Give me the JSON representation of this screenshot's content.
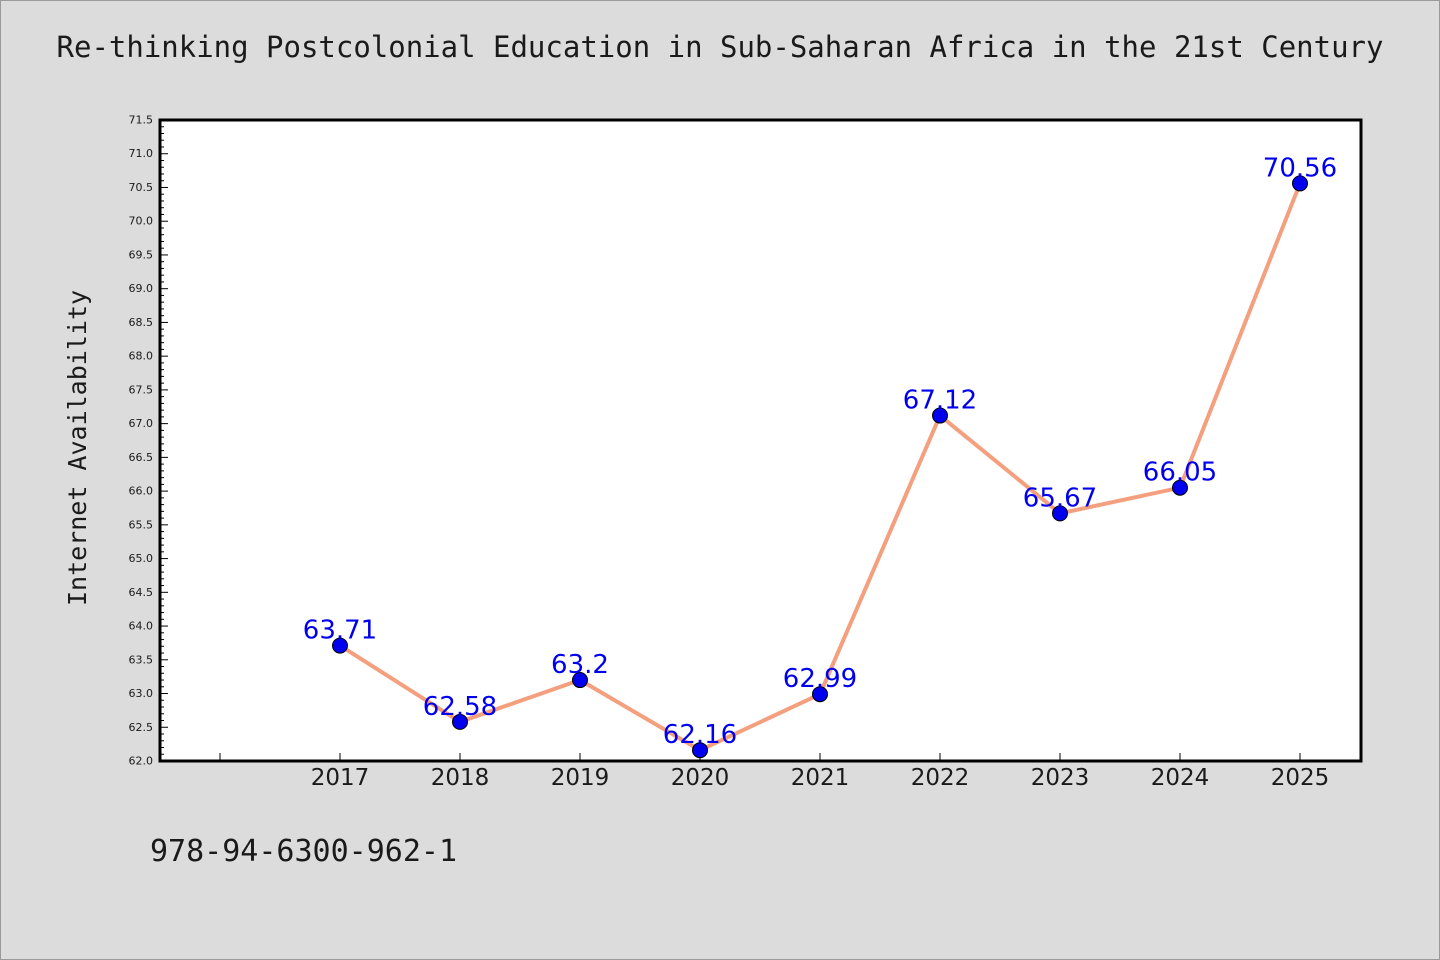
{
  "chart_data": {
    "type": "line",
    "title": "Re-thinking Postcolonial Education in Sub-Saharan Africa in the 21st Century",
    "xlabel": "",
    "ylabel": "Internet Availability",
    "categories": [
      "2017",
      "2018",
      "2019",
      "2020",
      "2021",
      "2022",
      "2023",
      "2024",
      "2025"
    ],
    "series": [
      {
        "values": [
          63.71,
          62.58,
          63.2,
          62.16,
          62.99,
          67.12,
          65.67,
          66.05,
          70.56
        ],
        "data_labels": [
          "63.71",
          "62.58",
          "63.2",
          "62.16",
          "62.99",
          "67.12",
          "65.67",
          "66.05",
          "70.56"
        ],
        "line_color": "#f4a07e",
        "marker_color": "#0000ee"
      }
    ],
    "ylim": [
      62.0,
      71.5
    ],
    "y_tick_labels": [
      "62.0",
      "62.5",
      "63.0",
      "63.5",
      "64.0",
      "64.5",
      "65.0",
      "65.5",
      "66.0",
      "66.5",
      "67.0",
      "67.5",
      "68.0",
      "68.5",
      "69.0",
      "69.5",
      "70.0",
      "70.5",
      "71.0",
      "71.5"
    ],
    "grid": false,
    "legend": "none",
    "label_color": "#0000ee",
    "background_color": "#dcdcdc",
    "plot_background": "#ffffff"
  },
  "footer_text": "978-94-6300-962-1"
}
